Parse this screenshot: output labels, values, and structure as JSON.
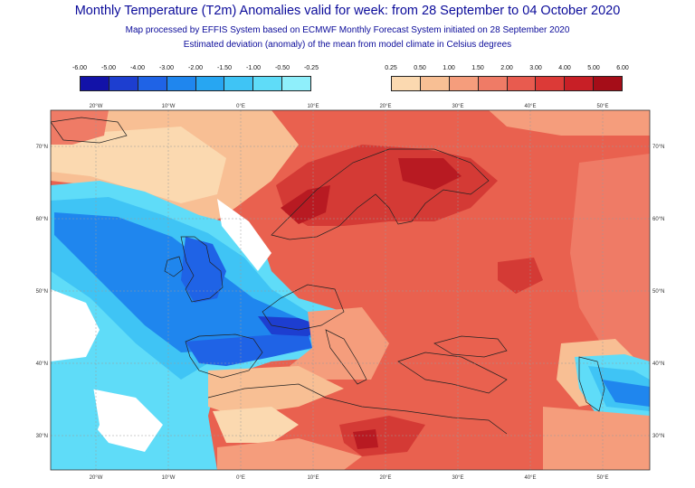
{
  "title": "Monthly Temperature (T2m) Anomalies valid for week: from 28 September to 04 October 2020",
  "subtitle1": "Map processed by EFFIS System based on ECMWF Monthly Forecast System initiated on 28 September 2020",
  "subtitle2": "Estimated deviation (anomaly) of the mean from model climate in Celsius degrees",
  "legend_cold": {
    "labels": [
      "-6.00",
      "-5.00",
      "-4.00",
      "-3.00",
      "-2.00",
      "-1.50",
      "-1.00",
      "-0.50",
      "-0.25"
    ],
    "colors": [
      "#1212a8",
      "#1d3ed0",
      "#1f63e6",
      "#1f86ee",
      "#27a6f2",
      "#3fc4f5",
      "#5fdcf8",
      "#8feffb"
    ]
  },
  "legend_warm": {
    "labels": [
      "0.25",
      "0.50",
      "1.00",
      "1.50",
      "2.00",
      "3.00",
      "4.00",
      "5.00",
      "6.00"
    ],
    "colors": [
      "#fbd9b0",
      "#f8bf94",
      "#f59d7c",
      "#ef7b66",
      "#e85b4f",
      "#dc3a37",
      "#c81f26",
      "#a50d18"
    ]
  },
  "map": {
    "lon_labels": [
      "20°W",
      "10°W",
      "0°E",
      "10°E",
      "20°E",
      "30°E",
      "40°E",
      "50°E"
    ],
    "lat_labels": [
      "70°N",
      "60°N",
      "50°N",
      "40°N",
      "30°N"
    ],
    "colors": {
      "warm_base": "#e9614f",
      "warm_light": "#f59d7c",
      "warm_pale": "#f8bf94",
      "warm_cream": "#fbd9b0",
      "warm_strong": "#d43a35",
      "warm_dark": "#b81a22",
      "cold_cyan": "#5fdcf8",
      "cold_light": "#3fc4f5",
      "cold_mid": "#1f86ee",
      "cold_deep": "#1f63e6",
      "white": "#ffffff"
    }
  }
}
